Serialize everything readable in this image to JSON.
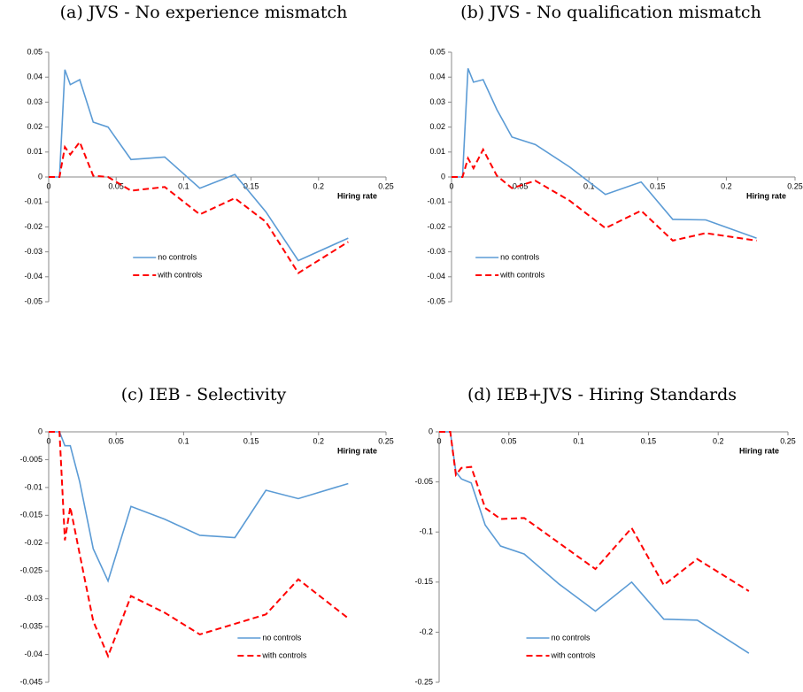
{
  "chart_data": [
    {
      "type": "line",
      "title": "(a) JVS - No experience mismatch",
      "x_label": "Hiring rate",
      "x": [
        0,
        0.008,
        0.012,
        0.016,
        0.023,
        0.033,
        0.044,
        0.061,
        0.086,
        0.112,
        0.138,
        0.161,
        0.185,
        0.222
      ],
      "series": [
        {
          "name": "no controls",
          "color": "#5b9bd5",
          "dashed": false,
          "values": [
            0,
            0,
            0.043,
            0.037,
            0.039,
            0.022,
            0.02,
            0.007,
            0.008,
            -0.0045,
            0.001,
            -0.014,
            -0.0335,
            -0.0245
          ]
        },
        {
          "name": "with controls",
          "color": "#ff0000",
          "dashed": true,
          "values": [
            0,
            0,
            0.012,
            0.009,
            0.014,
            0.0005,
            0,
            -0.0055,
            -0.004,
            -0.015,
            -0.0085,
            -0.018,
            -0.0385,
            -0.026
          ]
        }
      ],
      "xlim": [
        0,
        0.25
      ],
      "xticks": [
        0,
        0.05,
        0.1,
        0.15,
        0.2,
        0.25
      ],
      "ylim": [
        -0.05,
        0.05
      ],
      "yticks": [
        0.05,
        0.04,
        0.03,
        0.02,
        0.01,
        0,
        -0.01,
        -0.02,
        -0.03,
        -0.04,
        -0.05
      ],
      "legend": "lower center"
    },
    {
      "type": "line",
      "title": "(b) JVS - No qualification mismatch",
      "x_label": "Hiring rate",
      "x": [
        0,
        0.008,
        0.012,
        0.016,
        0.023,
        0.033,
        0.044,
        0.061,
        0.086,
        0.112,
        0.138,
        0.161,
        0.185,
        0.222
      ],
      "series": [
        {
          "name": "no controls",
          "color": "#5b9bd5",
          "dashed": false,
          "values": [
            0,
            0,
            0.0435,
            0.038,
            0.039,
            0.027,
            0.016,
            0.013,
            0.004,
            -0.007,
            -0.002,
            -0.017,
            -0.0172,
            -0.0245
          ]
        },
        {
          "name": "with controls",
          "color": "#ff0000",
          "dashed": true,
          "values": [
            0,
            0,
            0.0075,
            0.0035,
            0.011,
            0.0005,
            -0.0045,
            -0.0015,
            -0.0095,
            -0.0205,
            -0.0135,
            -0.0255,
            -0.0225,
            -0.0255
          ]
        }
      ],
      "xlim": [
        0,
        0.25
      ],
      "xticks": [
        0,
        0.05,
        0.1,
        0.15,
        0.2,
        0.25
      ],
      "ylim": [
        -0.05,
        0.05
      ],
      "yticks": [
        0.05,
        0.04,
        0.03,
        0.02,
        0.01,
        0,
        -0.01,
        -0.02,
        -0.03,
        -0.04,
        -0.05
      ],
      "legend": "lower left"
    },
    {
      "type": "line",
      "title": "(c) IEB - Selectivity",
      "x_label": "Hiring rate",
      "x": [
        0,
        0.008,
        0.012,
        0.016,
        0.023,
        0.033,
        0.044,
        0.061,
        0.086,
        0.112,
        0.138,
        0.161,
        0.185,
        0.222
      ],
      "series": [
        {
          "name": "no controls",
          "color": "#5b9bd5",
          "dashed": false,
          "values": [
            0,
            0,
            -0.0025,
            -0.0025,
            -0.009,
            -0.021,
            -0.0268,
            -0.0134,
            -0.0157,
            -0.0186,
            -0.019,
            -0.0105,
            -0.012,
            -0.0093
          ]
        },
        {
          "name": "with controls",
          "color": "#ff0000",
          "dashed": true,
          "values": [
            0,
            0,
            -0.0195,
            -0.0135,
            -0.022,
            -0.034,
            -0.0403,
            -0.0295,
            -0.0325,
            -0.0364,
            -0.0345,
            -0.0328,
            -0.0265,
            -0.0335
          ]
        }
      ],
      "xlim": [
        0,
        0.25
      ],
      "xticks": [
        0,
        0.05,
        0.1,
        0.15,
        0.2,
        0.25
      ],
      "ylim": [
        -0.045,
        0
      ],
      "yticks": [
        0,
        -0.005,
        -0.01,
        -0.015,
        -0.02,
        -0.025,
        -0.03,
        -0.035,
        -0.04,
        -0.045
      ],
      "legend": "lower right"
    },
    {
      "type": "line",
      "title": "(d) IEB+JVS - Hiring Standards",
      "x_label": "Hiring rate",
      "x": [
        0,
        0.008,
        0.012,
        0.016,
        0.023,
        0.033,
        0.044,
        0.061,
        0.086,
        0.112,
        0.138,
        0.161,
        0.185,
        0.222
      ],
      "series": [
        {
          "name": "no controls",
          "color": "#5b9bd5",
          "dashed": false,
          "values": [
            0,
            0,
            -0.04,
            -0.047,
            -0.051,
            -0.093,
            -0.114,
            -0.122,
            -0.152,
            -0.179,
            -0.15,
            -0.187,
            -0.188,
            -0.221
          ]
        },
        {
          "name": "with controls",
          "color": "#ff0000",
          "dashed": true,
          "values": [
            0,
            0,
            -0.043,
            -0.036,
            -0.035,
            -0.076,
            -0.087,
            -0.086,
            -0.111,
            -0.137,
            -0.096,
            -0.153,
            -0.127,
            -0.159
          ]
        }
      ],
      "xlim": [
        0,
        0.25
      ],
      "xticks": [
        0,
        0.05,
        0.1,
        0.15,
        0.2,
        0.25
      ],
      "ylim": [
        -0.25,
        0
      ],
      "yticks": [
        0,
        -0.05,
        -0.1,
        -0.15,
        -0.2,
        -0.25
      ],
      "legend": "lower center"
    }
  ]
}
